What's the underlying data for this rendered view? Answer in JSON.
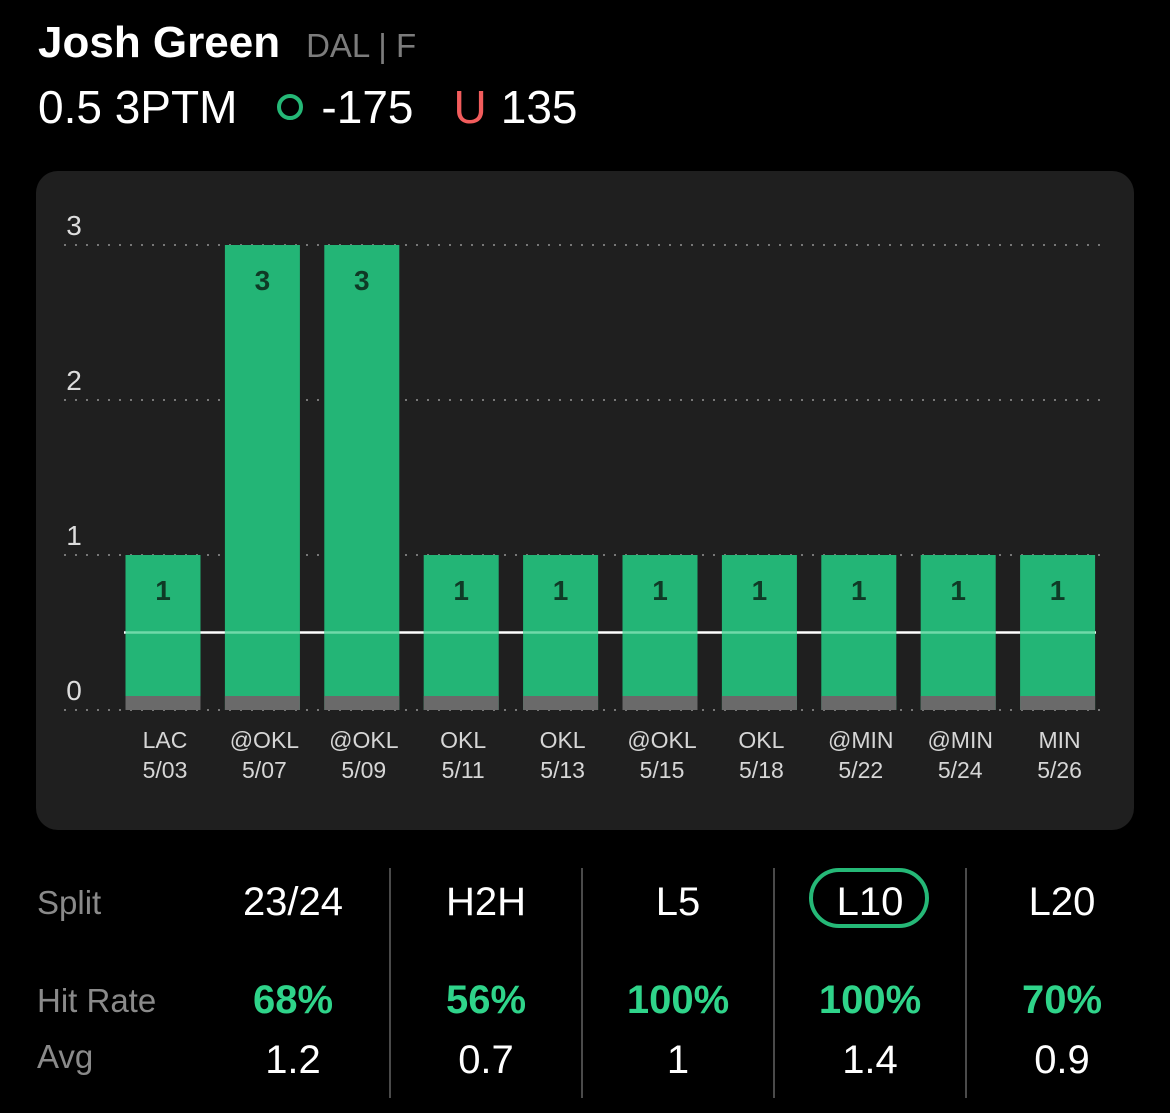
{
  "header": {
    "player_name": "Josh Green",
    "team_position": "DAL | F",
    "prop_line": "0.5 3PTM",
    "over_symbol": "O",
    "over_odds": "-175",
    "under_symbol": "U",
    "under_odds": "135"
  },
  "colors": {
    "bar": "#23b576",
    "over": "#25b877",
    "under": "#f25c5c",
    "hit_rate": "#2fd48a",
    "card": "#1f1f1f"
  },
  "chart_data": {
    "type": "bar",
    "categories": [
      "LAC",
      "@OKL",
      "@OKL",
      "OKL",
      "OKL",
      "@OKL",
      "OKL",
      "@MIN",
      "@MIN",
      "MIN"
    ],
    "dates": [
      "5/03",
      "5/07",
      "5/09",
      "5/11",
      "5/13",
      "5/15",
      "5/18",
      "5/22",
      "5/24",
      "5/26"
    ],
    "values": [
      1,
      3,
      3,
      1,
      1,
      1,
      1,
      1,
      1,
      1
    ],
    "line": 0.5,
    "ylim": [
      0,
      3
    ],
    "yticks": [
      "0",
      "1",
      "2",
      "3"
    ],
    "grid": true
  },
  "splits": {
    "row_labels": {
      "split": "Split",
      "hit_rate": "Hit Rate",
      "avg": "Avg"
    },
    "columns": [
      {
        "name": "23/24",
        "hit_rate": "68%",
        "avg": "1.2"
      },
      {
        "name": "H2H",
        "hit_rate": "56%",
        "avg": "0.7"
      },
      {
        "name": "L5",
        "hit_rate": "100%",
        "avg": "1"
      },
      {
        "name": "L10",
        "hit_rate": "100%",
        "avg": "1.4",
        "selected": true
      },
      {
        "name": "L20",
        "hit_rate": "70%",
        "avg": "0.9"
      }
    ]
  }
}
